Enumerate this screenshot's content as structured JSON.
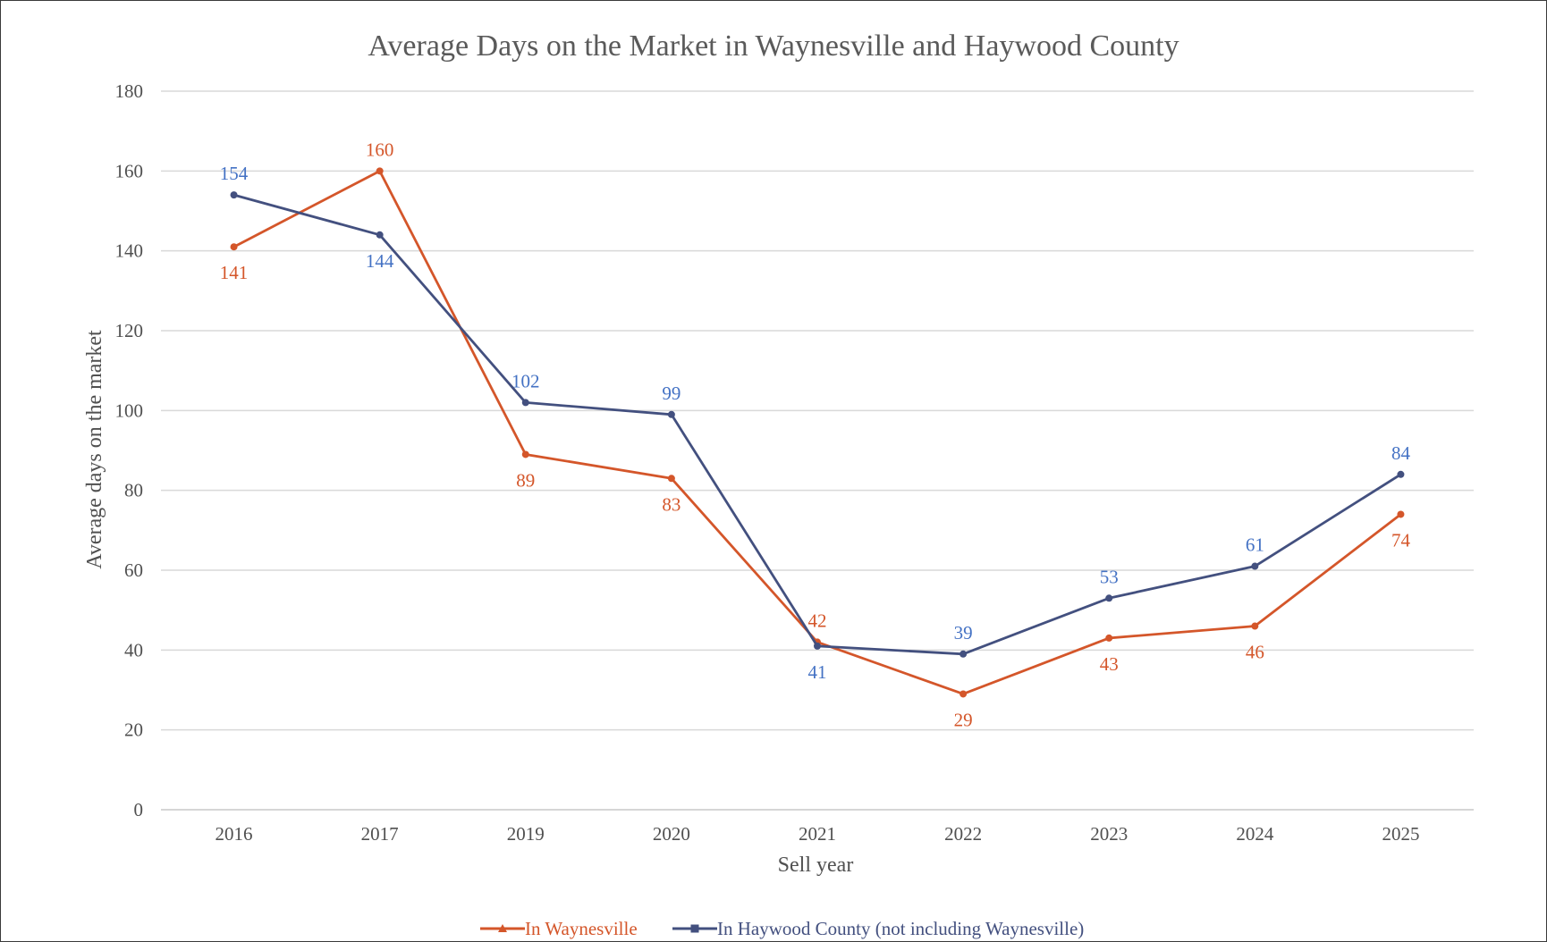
{
  "chart_data": {
    "type": "line",
    "title": "Average Days on the Market in Waynesville and Haywood County",
    "xlabel": "Sell year",
    "ylabel": "Average days on the market",
    "categories": [
      "2016",
      "2017",
      "2019",
      "2020",
      "2021",
      "2022",
      "2023",
      "2024",
      "2025"
    ],
    "ylim": [
      0,
      180
    ],
    "yticks": [
      0,
      20,
      40,
      60,
      80,
      100,
      120,
      140,
      160,
      180
    ],
    "grid": true,
    "legend_position": "bottom",
    "series": [
      {
        "name": "In Waynesville",
        "color": "#D4562A",
        "marker": "triangle",
        "label_position": [
          "below",
          "above",
          "below",
          "below",
          "above",
          "below",
          "below",
          "below",
          "below"
        ],
        "values": [
          141,
          160,
          89,
          83,
          42,
          29,
          43,
          46,
          74
        ]
      },
      {
        "name": "In Haywood County (not including Waynesville)",
        "color": "#43507F",
        "label_color": "#4472C4",
        "marker": "square",
        "label_position": [
          "above",
          "below",
          "above",
          "above",
          "below",
          "above",
          "above",
          "above",
          "above"
        ],
        "values": [
          154,
          144,
          102,
          99,
          41,
          39,
          53,
          61,
          84
        ]
      }
    ]
  }
}
